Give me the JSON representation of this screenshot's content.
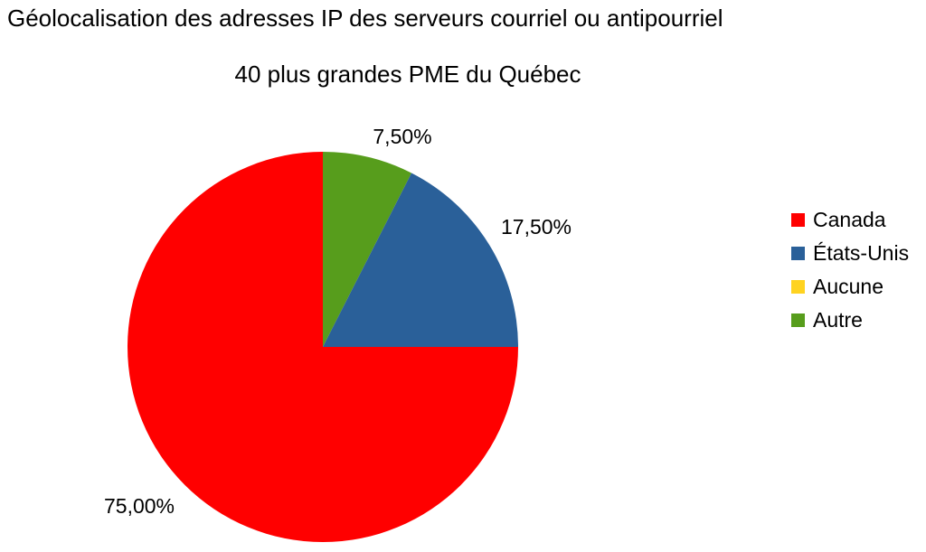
{
  "chart_data": {
    "type": "pie",
    "title": "Géolocalisation des adresses IP des serveurs courriel ou antipourriel",
    "subtitle": "40 plus grandes PME du Québec",
    "categories": [
      "Canada",
      "États-Unis",
      "Aucune",
      "Autre"
    ],
    "values": [
      75.0,
      17.5,
      0.0,
      7.5
    ],
    "labels": [
      "75,00%",
      "17,50%",
      "",
      "7,50%"
    ],
    "colors": [
      "#ff0000",
      "#2a6099",
      "#ffd320",
      "#579d1c"
    ],
    "legend": "right",
    "start_angle": "12 o'clock",
    "direction": "clockwise, from the first category"
  }
}
